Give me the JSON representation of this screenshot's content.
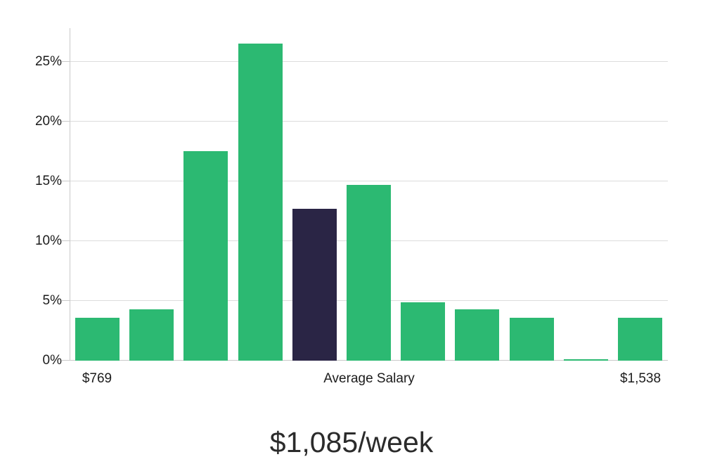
{
  "chart_data": {
    "type": "bar",
    "title": "$1,085/week",
    "xlabel": "",
    "ylabel": "",
    "y_ticks": [
      "0%",
      "5%",
      "10%",
      "15%",
      "20%",
      "25%"
    ],
    "y_tick_step_percent": 5,
    "ylim": [
      0,
      27.8
    ],
    "grid": "horizontal",
    "values": [
      3.6,
      4.3,
      17.5,
      26.5,
      12.7,
      14.7,
      4.9,
      4.3,
      3.6,
      0.1,
      3.6
    ],
    "highlight_index": 4,
    "highlight_meaning": "bar containing the average salary",
    "x_axis_labels": [
      {
        "text": "$769",
        "anchor": "first-bar"
      },
      {
        "text": "Average Salary",
        "anchor": "plot-center"
      },
      {
        "text": "$1,538",
        "anchor": "last-bar"
      }
    ],
    "colors": {
      "bar": "#2cb972",
      "highlight": "#2a2545",
      "gridline": "#dcdcdc",
      "axis": "#c9c9c9",
      "text": "#1c1c1c",
      "title_text": "#2b2b2b"
    }
  }
}
